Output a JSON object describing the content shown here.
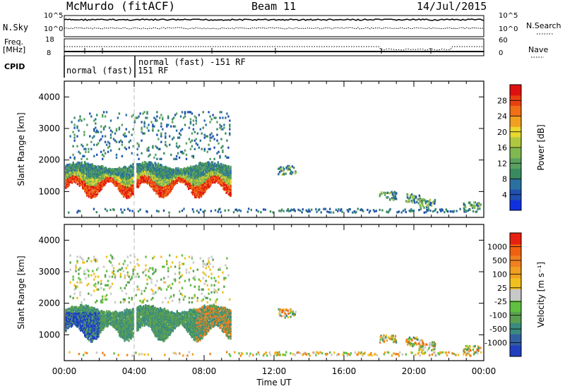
{
  "header": {
    "station": "McMurdo (fitACF)",
    "beam": "Beam 11",
    "date": "14/Jul/2015"
  },
  "top_panel": {
    "left_label": "N.Sky",
    "left_ticks": [
      "10^5",
      "10^0"
    ],
    "right_ticks": [
      "10^5",
      "10^0"
    ],
    "right_label": "N.Search",
    "freq_label_1": "Freq.",
    "freq_label_2": "[MHz]",
    "freq_ticks": [
      "18",
      "8"
    ],
    "nave_ticks": [
      "60",
      "0"
    ],
    "nave_label": "Nave",
    "cpid_label": "CPID",
    "cpid_1": "normal (fast) 151 RF",
    "cpid_2": "normal (fast) -151 RF"
  },
  "chart_data": [
    {
      "type": "heatmap",
      "name": "power",
      "ylabel": "Slant Range [km]",
      "ylim": [
        180,
        4500
      ],
      "yticks": [
        "4000",
        "3000",
        "2000",
        "1000"
      ],
      "colorbar": {
        "label": "Power [dB]",
        "ticks": [
          "28",
          "24",
          "20",
          "16",
          "12",
          "8",
          "4"
        ],
        "range": [
          0,
          32
        ],
        "colors": [
          "#1030e0",
          "#2050b0",
          "#2a70a0",
          "#3a8a60",
          "#5aa060",
          "#80b850",
          "#b0c840",
          "#e8d830",
          "#f0a020",
          "#f07018",
          "#e84010",
          "#e01010"
        ]
      }
    },
    {
      "type": "heatmap",
      "name": "velocity",
      "ylabel": "Slant Range [km]",
      "ylim": [
        180,
        4500
      ],
      "yticks": [
        "4000",
        "3000",
        "2000",
        "1000"
      ],
      "colorbar": {
        "label": "Velocity [m s⁻¹]",
        "ticks": [
          "1000",
          "500",
          "100",
          "25",
          "-25",
          "-100",
          "-500",
          "-1000"
        ],
        "colors": [
          "#2040c0",
          "#3060a0",
          "#3a8a80",
          "#5aa050",
          "#60c040",
          "#c8c8c8",
          "#f0c020",
          "#f0a020",
          "#f08020",
          "#f06010",
          "#e82010"
        ]
      }
    }
  ],
  "time_axis": {
    "label": "Time UT",
    "ticks": [
      "00:00",
      "04:00",
      "08:00",
      "12:00",
      "16:00",
      "20:00",
      "00:00"
    ],
    "xlim": [
      0,
      24
    ]
  }
}
